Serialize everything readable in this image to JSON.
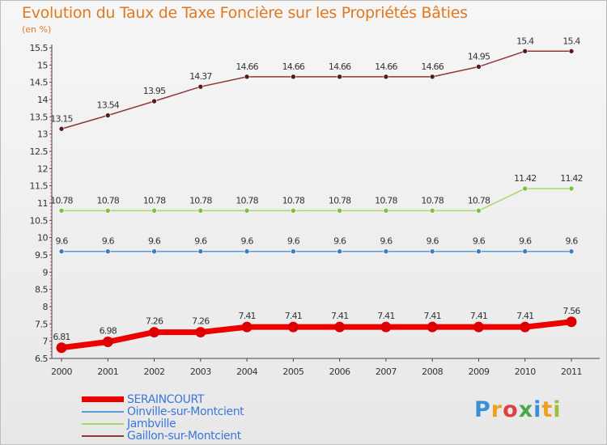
{
  "chart_data": {
    "type": "line",
    "title": "Evolution du Taux de Taxe Foncière sur les Propriétés Bâties",
    "ylabel": "(en %)",
    "xlabel": "",
    "x": [
      2000,
      2001,
      2002,
      2003,
      2004,
      2005,
      2006,
      2007,
      2008,
      2009,
      2010,
      2011
    ],
    "ylim": [
      6.5,
      15.5
    ],
    "yticks": [
      6.5,
      7,
      7.5,
      8,
      8.5,
      9,
      9.5,
      10,
      10.5,
      11,
      11.5,
      12,
      12.5,
      13,
      13.5,
      14,
      14.5,
      15,
      15.5
    ],
    "series": [
      {
        "name": "SERAINCOURT",
        "color": "#ee0000",
        "marker_color": "#dd0000",
        "width": 7,
        "values": [
          6.81,
          6.98,
          7.26,
          7.26,
          7.41,
          7.41,
          7.41,
          7.41,
          7.41,
          7.41,
          7.41,
          7.56
        ],
        "labels": [
          "6.81",
          "6.98",
          "7.26",
          "7.26",
          "7.41",
          "7.41",
          "7.41",
          "7.41",
          "7.41",
          "7.41",
          "7.41",
          "7.56"
        ]
      },
      {
        "name": "Oinville-sur-Montcient",
        "color": "#5b9bd5",
        "marker_color": "#3a7cc4",
        "width": 1.5,
        "values": [
          9.6,
          9.6,
          9.6,
          9.6,
          9.6,
          9.6,
          9.6,
          9.6,
          9.6,
          9.6,
          9.6,
          9.6
        ],
        "labels": [
          "9.6",
          "9.6",
          "9.6",
          "9.6",
          "9.6",
          "9.6",
          "9.6",
          "9.6",
          "9.6",
          "9.6",
          "9.6",
          "9.6"
        ]
      },
      {
        "name": "Jambville",
        "color": "#a6d96a",
        "marker_color": "#7cc040",
        "width": 1.5,
        "values": [
          10.78,
          10.78,
          10.78,
          10.78,
          10.78,
          10.78,
          10.78,
          10.78,
          10.78,
          10.78,
          11.42,
          11.42
        ],
        "labels": [
          "10.78",
          "10.78",
          "10.78",
          "10.78",
          "10.78",
          "10.78",
          "10.78",
          "10.78",
          "10.78",
          "10.78",
          "11.42",
          "11.42"
        ]
      },
      {
        "name": "Gaillon-sur-Montcient",
        "color": "#8b3a3a",
        "marker_color": "#5a1a1a",
        "width": 1.5,
        "values": [
          13.15,
          13.54,
          13.95,
          14.37,
          14.66,
          14.66,
          14.66,
          14.66,
          14.66,
          14.95,
          15.4,
          15.4
        ],
        "labels": [
          "13.15",
          "13.54",
          "13.95",
          "14.37",
          "14.66",
          "14.66",
          "14.66",
          "14.66",
          "14.66",
          "14.95",
          "15.4",
          "15.4"
        ]
      }
    ]
  },
  "branding": {
    "logo_text": "Proxiti"
  }
}
